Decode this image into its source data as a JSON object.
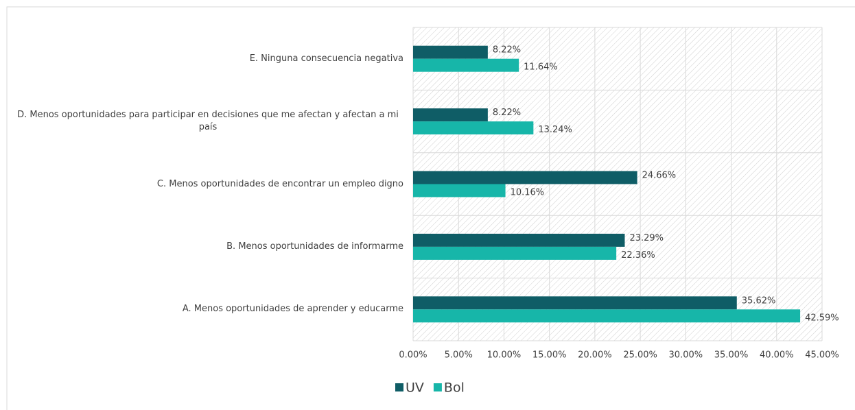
{
  "chart_data": {
    "type": "bar",
    "orientation": "horizontal",
    "categories": [
      "E. Ninguna consecuencia negativa",
      "D. Menos oportunidades para participar en decisiones que me afectan y afectan a mi país",
      "C. Menos oportunidades de encontrar un empleo digno",
      "B. Menos oportunidades de informarme",
      "A. Menos oportunidades de aprender y educarme"
    ],
    "series": [
      {
        "name": "UV",
        "color": "#0f5d66",
        "values": [
          8.22,
          8.22,
          24.66,
          23.29,
          35.62
        ],
        "value_labels": [
          "8.22%",
          "8.22%",
          "24.66%",
          "23.29%",
          "35.62%"
        ]
      },
      {
        "name": "Bol",
        "color": "#17b6a9",
        "values": [
          11.64,
          13.24,
          10.16,
          22.36,
          42.59
        ],
        "value_labels": [
          "11.64%",
          "13.24%",
          "10.16%",
          "22.36%",
          "42.59%"
        ]
      }
    ],
    "xlim": [
      0,
      45
    ],
    "xticks": [
      {
        "value": 0,
        "label": "0.00%"
      },
      {
        "value": 5,
        "label": "5.00%"
      },
      {
        "value": 10,
        "label": "10.00%"
      },
      {
        "value": 15,
        "label": "15.00%"
      },
      {
        "value": 20,
        "label": "20.00%"
      },
      {
        "value": 25,
        "label": "25.00%"
      },
      {
        "value": 30,
        "label": "30.00%"
      },
      {
        "value": 35,
        "label": "35.00%"
      },
      {
        "value": 40,
        "label": "40.00%"
      },
      {
        "value": 45,
        "label": "45.00%"
      }
    ],
    "grid": true,
    "legend": "bottom"
  }
}
